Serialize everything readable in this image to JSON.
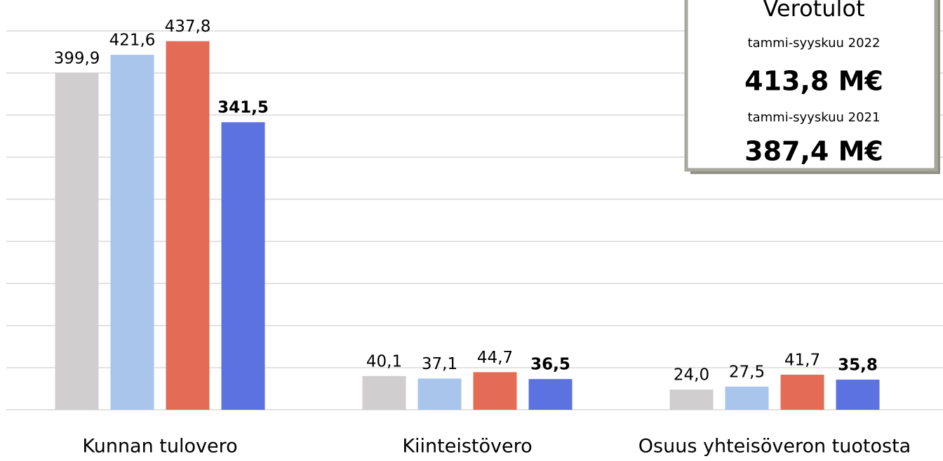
{
  "chart_data": {
    "type": "bar",
    "categories": [
      "Kunnan tulovero",
      "Kiinteistövero",
      "Osuus yhteisöveron tuotosta"
    ],
    "series": [
      {
        "color": "#d0cece",
        "values": [
          399.9,
          40.1,
          24.0
        ],
        "value_labels": [
          "399,9",
          "40,1",
          "24,0"
        ]
      },
      {
        "color": "#a9c5ec",
        "values": [
          421.6,
          37.1,
          27.5
        ],
        "value_labels": [
          "421,6",
          "37,1",
          "27,5"
        ]
      },
      {
        "color": "#e46c56",
        "values": [
          437.8,
          44.7,
          41.7
        ],
        "value_labels": [
          "437,8",
          "44,7",
          "41,7"
        ]
      },
      {
        "color": "#5b72e0",
        "values": [
          341.5,
          36.5,
          35.8
        ],
        "value_labels": [
          "341,5",
          "36,5",
          "35,8"
        ],
        "bold_labels": true
      }
    ],
    "ylim": [
      0,
      450
    ],
    "yticks": [
      0,
      50,
      100,
      150,
      200,
      250,
      300,
      350,
      400,
      450
    ],
    "grid": true,
    "annotation": {
      "title": "Verotulot",
      "label1": "tammi-syyskuu 2022",
      "value1": "413,8 M€",
      "label2": "tammi-syyskuu 2021",
      "value2": "387,4 M€"
    }
  }
}
